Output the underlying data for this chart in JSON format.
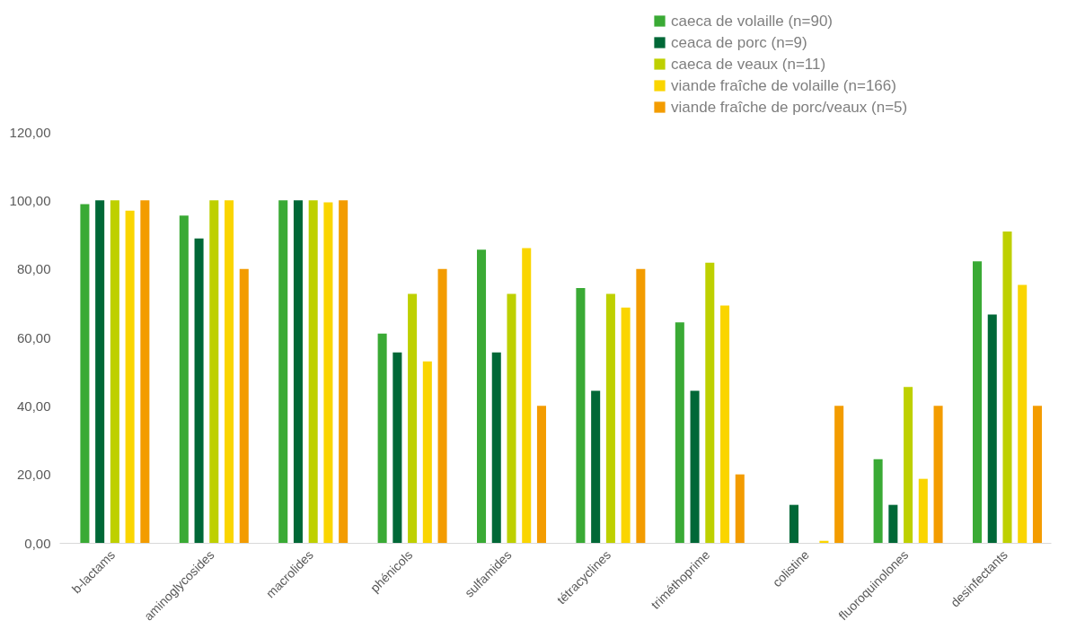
{
  "chart_data": {
    "type": "bar",
    "categories": [
      "b-lactams",
      "aminoglycosides",
      "macrolides",
      "phénicols",
      "sulfamides",
      "tétracyclines",
      "triméthoprime",
      "colistine",
      "fluoroquinolones",
      "desinfectants"
    ],
    "series": [
      {
        "name": "caeca de volaille (n=90)",
        "color": "#3aaa35",
        "values": [
          98.9,
          95.6,
          100,
          61.1,
          85.6,
          74.4,
          64.4,
          0,
          24.4,
          82.2
        ]
      },
      {
        "name": "ceaca de porc (n=9)",
        "color": "#006837",
        "values": [
          100,
          88.9,
          100,
          55.6,
          55.6,
          44.4,
          44.4,
          11.1,
          11.1,
          66.7
        ]
      },
      {
        "name": "caeca de veaux (n=11)",
        "color": "#bed000",
        "values": [
          100,
          100,
          100,
          72.7,
          72.7,
          72.7,
          81.8,
          0,
          45.5,
          90.9
        ]
      },
      {
        "name": "viande fraîche de volaille (n=166)",
        "color": "#fad500",
        "values": [
          97.0,
          100,
          99.4,
          53.0,
          86.1,
          68.7,
          69.3,
          0.6,
          18.7,
          75.3
        ]
      },
      {
        "name": "viande fraîche de porc/veaux (n=5)",
        "color": "#f39c00",
        "values": [
          100,
          80,
          100,
          80,
          40,
          80,
          20,
          40,
          40,
          40
        ]
      }
    ],
    "ylim": [
      0,
      120
    ],
    "yticks": [
      {
        "value": 0,
        "label": "0,00"
      },
      {
        "value": 20,
        "label": "20,00"
      },
      {
        "value": 40,
        "label": "40,00"
      },
      {
        "value": 60,
        "label": "60,00"
      },
      {
        "value": 80,
        "label": "80,00"
      },
      {
        "value": 100,
        "label": "100,00"
      },
      {
        "value": 120,
        "label": "120,00"
      }
    ],
    "grid": false,
    "legend": "top right"
  }
}
